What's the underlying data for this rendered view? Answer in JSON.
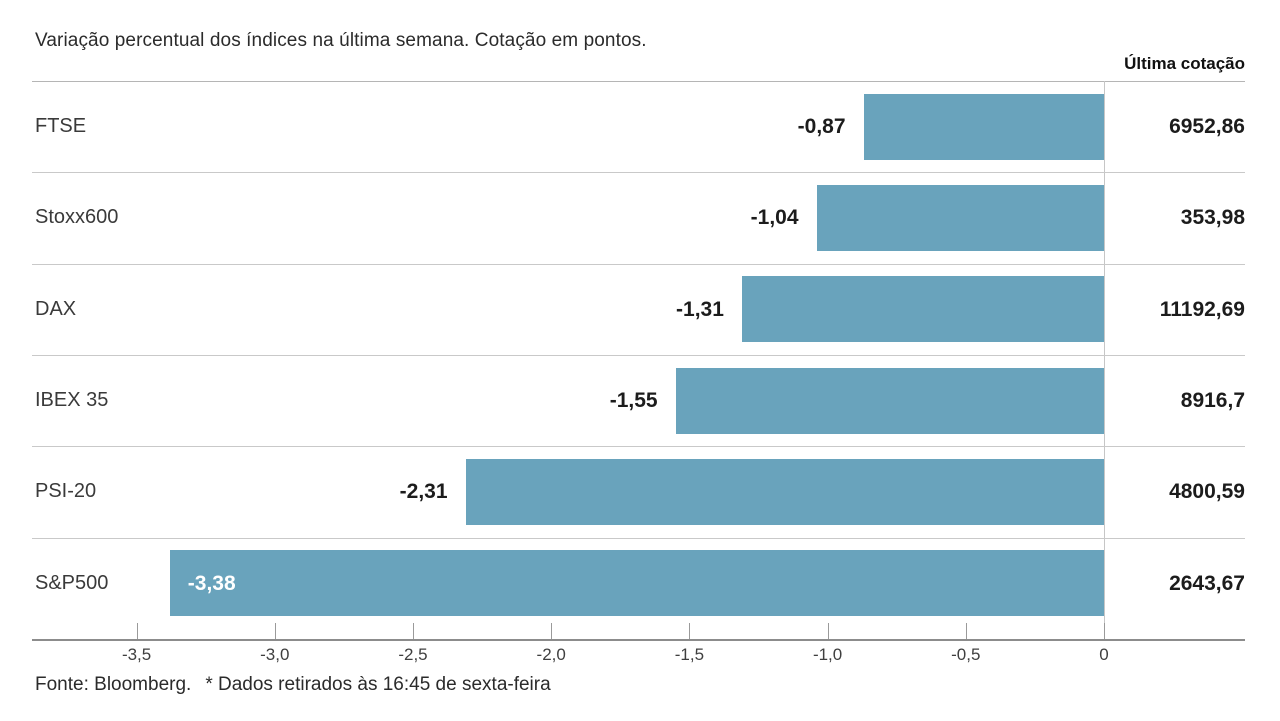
{
  "title": "Variação percentual dos índices na última semana. Cotação em pontos.",
  "quote_header": "Última cotação",
  "footer": {
    "source": "Fonte: Bloomberg.",
    "note": "* Dados retirados às 16:45 de sexta-feira"
  },
  "colors": {
    "bar": "#69a3bc",
    "inside_label": "#ffffff",
    "text_dark": "#1c1c1c",
    "separator": "#c9c9c9",
    "axis_line": "#8c8c8c"
  },
  "chart_data": {
    "type": "bar",
    "orientation": "horizontal",
    "title": "Variação percentual dos índices na última semana. Cotação em pontos.",
    "categories": [
      "FTSE",
      "Stoxx600",
      "DAX",
      "IBEX 35",
      "PSI-20",
      "S&P500"
    ],
    "series": [
      {
        "name": "Variação percentual na última semana (%)",
        "values": [
          -0.87,
          -1.04,
          -1.31,
          -1.55,
          -2.31,
          -3.38
        ],
        "value_labels": [
          "-0,87",
          "-1,04",
          "-1,31",
          "-1,55",
          "-2,31",
          "-3,38"
        ]
      },
      {
        "name": "Última cotação (pontos)",
        "values": [
          6952.86,
          353.98,
          11192.69,
          8916.7,
          4800.59,
          2643.67
        ],
        "value_labels": [
          "6952,86",
          "353,98",
          "11192,69",
          "8916,7",
          "4800,59",
          "2643,67"
        ]
      }
    ],
    "xlim": [
      -3.88,
      0.51
    ],
    "x_ticks": [
      {
        "value": -3.5,
        "label": "-3,5"
      },
      {
        "value": -3.0,
        "label": "-3,0"
      },
      {
        "value": -2.5,
        "label": "-2,5"
      },
      {
        "value": -2.0,
        "label": "-2,0"
      },
      {
        "value": -1.5,
        "label": "-1,5"
      },
      {
        "value": -1.0,
        "label": "-1,0"
      },
      {
        "value": -0.5,
        "label": "-0,5"
      },
      {
        "value": 0,
        "label": "0"
      }
    ],
    "legend": "none",
    "grid": "horizontal row separators only"
  }
}
